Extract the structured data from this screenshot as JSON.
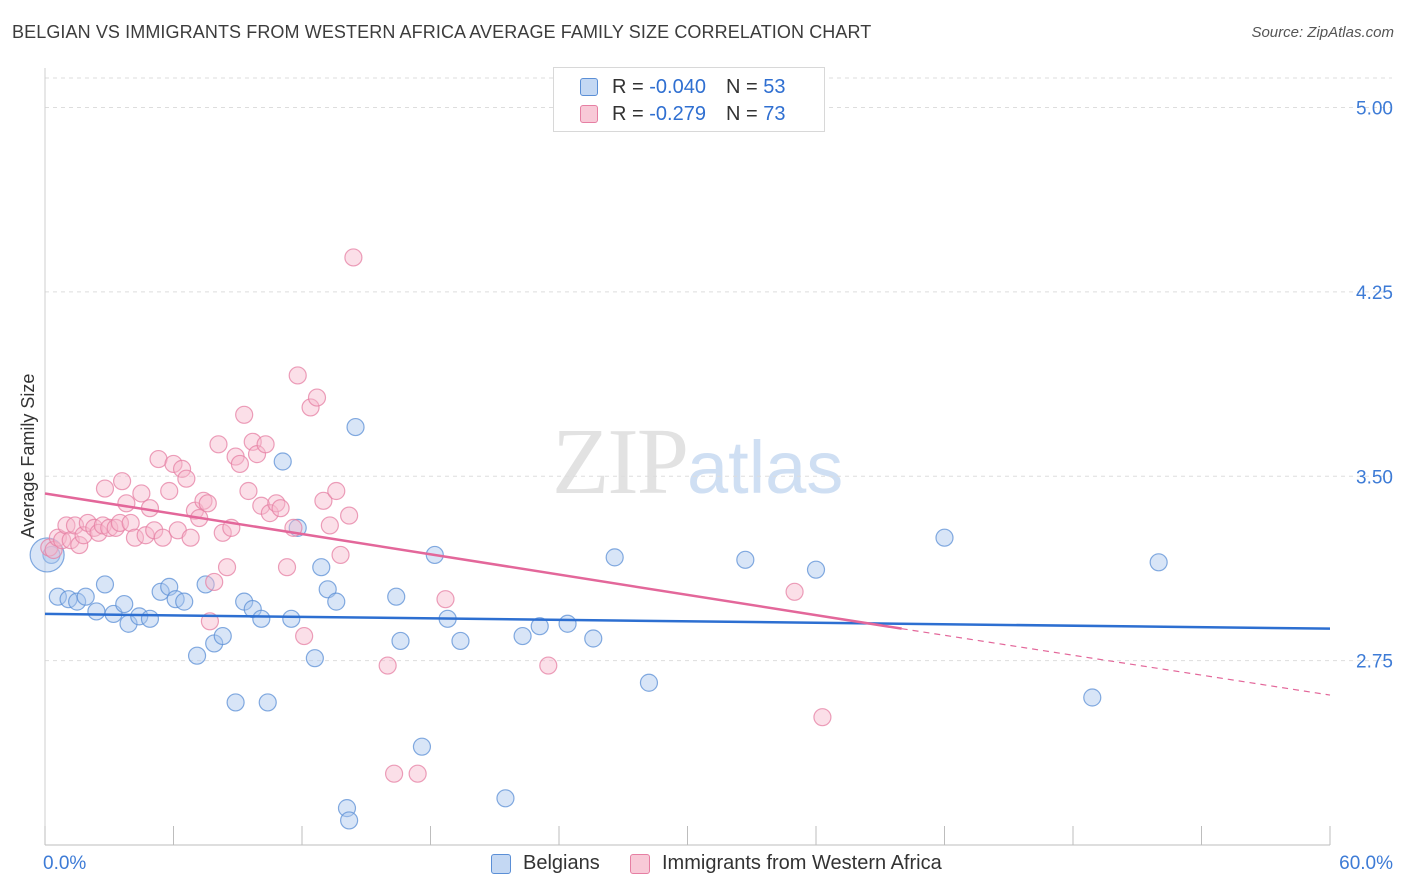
{
  "header": {
    "title": "BELGIAN VS IMMIGRANTS FROM WESTERN AFRICA AVERAGE FAMILY SIZE CORRELATION CHART",
    "source": "Source: ZipAtlas.com"
  },
  "legend": {
    "rows": [
      {
        "r_label": "R = ",
        "r_value": "-0.040",
        "n_label": "N = ",
        "n_value": "53"
      },
      {
        "r_label": "R = ",
        "r_value": "-0.279",
        "n_label": "N = ",
        "n_value": "73"
      }
    ]
  },
  "watermark": {
    "zip": "ZIP",
    "atlas": "atlas"
  },
  "colors": {
    "blue_fill": "#a9c6ee",
    "blue_stroke": "#5b8fd6",
    "blue_line": "#2d6fd1",
    "pink_fill": "#f6b8cb",
    "pink_stroke": "#e67fa3",
    "pink_line": "#e3679a",
    "tick_label": "#3d7bd6",
    "grid": "#dddddd"
  },
  "chart_data": {
    "type": "scatter",
    "title": "BELGIAN VS IMMIGRANTS FROM WESTERN AFRICA AVERAGE FAMILY SIZE CORRELATION CHART",
    "xlabel": "",
    "ylabel": "Average Family Size",
    "xlim": [
      0,
      60
    ],
    "ylim": [
      2.0,
      5.12
    ],
    "x_tick_labels": [
      "0.0%",
      "60.0%"
    ],
    "y_ticks": [
      2.75,
      3.5,
      4.25,
      5.0
    ],
    "y_tick_labels": [
      "2.75",
      "3.50",
      "4.25",
      "5.00"
    ],
    "grid": "horizontal dashed",
    "legend_placement": "bottom-center",
    "series": [
      {
        "name": "Belgians",
        "color": "blue",
        "trend": {
          "x": [
            0,
            60
          ],
          "y": [
            2.94,
            2.88
          ]
        },
        "points": [
          [
            0.3,
            3.18
          ],
          [
            0.6,
            3.01
          ],
          [
            1.1,
            3.0
          ],
          [
            1.5,
            2.99
          ],
          [
            1.9,
            3.01
          ],
          [
            2.4,
            2.95
          ],
          [
            2.8,
            3.06
          ],
          [
            3.2,
            2.94
          ],
          [
            3.7,
            2.98
          ],
          [
            3.9,
            2.9
          ],
          [
            4.4,
            2.93
          ],
          [
            4.9,
            2.92
          ],
          [
            5.4,
            3.03
          ],
          [
            5.8,
            3.05
          ],
          [
            6.1,
            3.0
          ],
          [
            6.5,
            2.99
          ],
          [
            7.1,
            2.77
          ],
          [
            7.5,
            3.06
          ],
          [
            7.9,
            2.82
          ],
          [
            8.3,
            2.85
          ],
          [
            8.9,
            2.58
          ],
          [
            9.3,
            2.99
          ],
          [
            9.7,
            2.96
          ],
          [
            10.1,
            2.92
          ],
          [
            10.4,
            2.58
          ],
          [
            11.1,
            3.56
          ],
          [
            11.5,
            2.92
          ],
          [
            11.8,
            3.29
          ],
          [
            12.6,
            2.76
          ],
          [
            12.9,
            3.13
          ],
          [
            13.2,
            3.04
          ],
          [
            13.6,
            2.99
          ],
          [
            14.1,
            2.15
          ],
          [
            14.2,
            2.1
          ],
          [
            14.5,
            3.7
          ],
          [
            16.4,
            3.01
          ],
          [
            16.6,
            2.83
          ],
          [
            17.6,
            2.4
          ],
          [
            18.2,
            3.18
          ],
          [
            18.8,
            2.92
          ],
          [
            19.4,
            2.83
          ],
          [
            21.5,
            2.19
          ],
          [
            22.3,
            2.85
          ],
          [
            23.1,
            2.89
          ],
          [
            24.4,
            2.9
          ],
          [
            25.6,
            2.84
          ],
          [
            26.6,
            3.17
          ],
          [
            28.2,
            2.66
          ],
          [
            32.7,
            3.16
          ],
          [
            36.0,
            3.12
          ],
          [
            42.0,
            3.25
          ],
          [
            48.9,
            2.6
          ],
          [
            52.0,
            3.15
          ]
        ]
      },
      {
        "name": "Immigrants from Western Africa",
        "color": "pink",
        "trend": {
          "x": [
            0,
            40
          ],
          "y": [
            3.43,
            2.88
          ]
        },
        "trend_extension": {
          "x": [
            40,
            60
          ],
          "y": [
            2.88,
            2.61
          ]
        },
        "points": [
          [
            0.2,
            3.21
          ],
          [
            0.4,
            3.2
          ],
          [
            0.6,
            3.25
          ],
          [
            0.8,
            3.24
          ],
          [
            1.0,
            3.3
          ],
          [
            1.2,
            3.24
          ],
          [
            1.4,
            3.3
          ],
          [
            1.6,
            3.22
          ],
          [
            1.8,
            3.26
          ],
          [
            2.0,
            3.31
          ],
          [
            2.3,
            3.29
          ],
          [
            2.5,
            3.27
          ],
          [
            2.7,
            3.3
          ],
          [
            2.8,
            3.45
          ],
          [
            3.0,
            3.29
          ],
          [
            3.3,
            3.29
          ],
          [
            3.5,
            3.31
          ],
          [
            3.6,
            3.48
          ],
          [
            3.8,
            3.39
          ],
          [
            4.0,
            3.31
          ],
          [
            4.2,
            3.25
          ],
          [
            4.5,
            3.43
          ],
          [
            4.7,
            3.26
          ],
          [
            4.9,
            3.37
          ],
          [
            5.1,
            3.28
          ],
          [
            5.3,
            3.57
          ],
          [
            5.5,
            3.25
          ],
          [
            5.8,
            3.44
          ],
          [
            6.0,
            3.55
          ],
          [
            6.2,
            3.28
          ],
          [
            6.4,
            3.53
          ],
          [
            6.6,
            3.49
          ],
          [
            6.8,
            3.25
          ],
          [
            7.0,
            3.36
          ],
          [
            7.2,
            3.33
          ],
          [
            7.4,
            3.4
          ],
          [
            7.6,
            3.39
          ],
          [
            7.7,
            2.91
          ],
          [
            7.9,
            3.07
          ],
          [
            8.1,
            3.63
          ],
          [
            8.3,
            3.27
          ],
          [
            8.5,
            3.13
          ],
          [
            8.7,
            3.29
          ],
          [
            8.9,
            3.58
          ],
          [
            9.1,
            3.55
          ],
          [
            9.3,
            3.75
          ],
          [
            9.5,
            3.44
          ],
          [
            9.7,
            3.64
          ],
          [
            9.9,
            3.59
          ],
          [
            10.1,
            3.38
          ],
          [
            10.3,
            3.63
          ],
          [
            10.5,
            3.35
          ],
          [
            10.8,
            3.39
          ],
          [
            11.0,
            3.37
          ],
          [
            11.3,
            3.13
          ],
          [
            11.6,
            3.29
          ],
          [
            11.8,
            3.91
          ],
          [
            12.1,
            2.85
          ],
          [
            12.4,
            3.78
          ],
          [
            12.7,
            3.82
          ],
          [
            13.0,
            3.4
          ],
          [
            13.3,
            3.3
          ],
          [
            13.6,
            3.44
          ],
          [
            13.8,
            3.18
          ],
          [
            14.2,
            3.34
          ],
          [
            14.4,
            4.39
          ],
          [
            16.0,
            2.73
          ],
          [
            16.3,
            2.29
          ],
          [
            17.4,
            2.29
          ],
          [
            18.7,
            3.0
          ],
          [
            23.5,
            2.73
          ],
          [
            35.0,
            3.03
          ],
          [
            36.3,
            2.52
          ]
        ]
      }
    ]
  },
  "bottom_legend": {
    "items": [
      {
        "label": "Belgians"
      },
      {
        "label": "Immigrants from Western Africa"
      }
    ]
  }
}
